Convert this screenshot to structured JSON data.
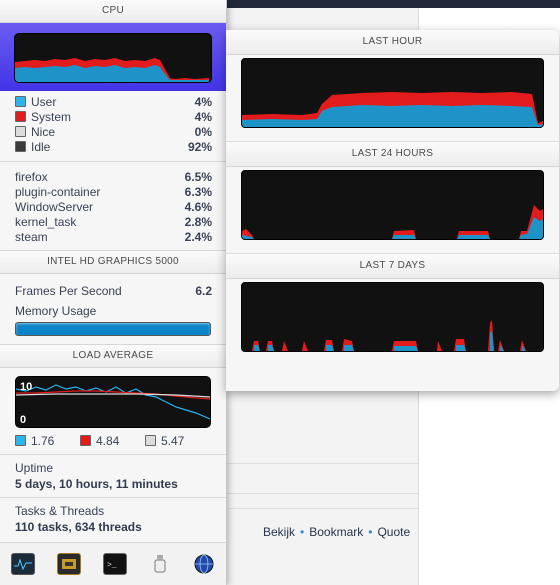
{
  "cpu": {
    "title": "CPU",
    "usage": [
      {
        "label": "User",
        "value": "4%",
        "color": "#2ab4f0"
      },
      {
        "label": "System",
        "value": "4%",
        "color": "#e21c1c"
      },
      {
        "label": "Nice",
        "value": "0%",
        "color": "#dcdcdc"
      },
      {
        "label": "Idle",
        "value": "92%",
        "color": "#3a3a3a"
      }
    ],
    "processes": [
      {
        "name": "firefox",
        "value": "6.5%"
      },
      {
        "name": "plugin-container",
        "value": "6.3%"
      },
      {
        "name": "WindowServer",
        "value": "4.6%"
      },
      {
        "name": "kernel_task",
        "value": "2.8%"
      },
      {
        "name": "steam",
        "value": "2.4%"
      }
    ]
  },
  "gpu": {
    "title": "INTEL HD GRAPHICS 5000",
    "fps_label": "Frames Per Second",
    "fps_value": "6.2",
    "memory_label": "Memory Usage",
    "memory_fraction": 1.0
  },
  "load": {
    "title": "LOAD AVERAGE",
    "max_label": "10",
    "min_label": "0",
    "values": [
      {
        "value": "1.76",
        "color": "#2ab4f0"
      },
      {
        "value": "4.84",
        "color": "#e21c1c"
      },
      {
        "value": "5.47",
        "color": "#dcdcdc"
      }
    ]
  },
  "uptime": {
    "label": "Uptime",
    "value": "5 days, 10 hours, 11 minutes"
  },
  "tasks": {
    "label": "Tasks & Threads",
    "value": "110 tasks, 634 threads"
  },
  "history": {
    "last_hour": "LAST HOUR",
    "last_24": "LAST 24 HOURS",
    "last_7": "LAST 7 DAYS"
  },
  "dock": [
    "activity-monitor-icon",
    "cpu-chip-icon",
    "terminal-icon",
    "usb-device-icon",
    "network-globe-icon"
  ],
  "page_links": {
    "view": "Bekijk",
    "bookmark": "Bookmark",
    "quote": "Quote"
  }
}
